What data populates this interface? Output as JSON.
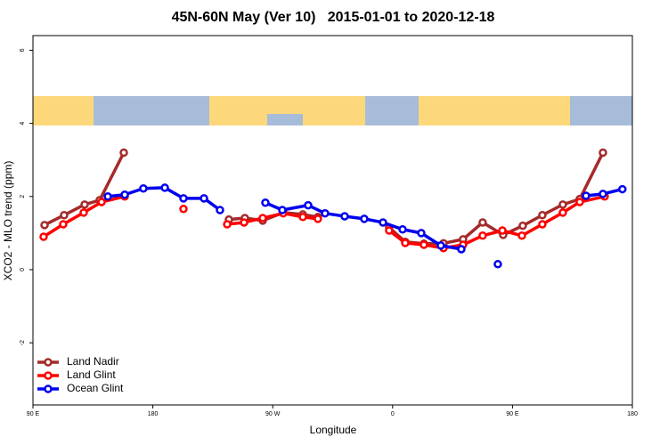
{
  "chart_data": {
    "type": "line",
    "title": "45N-60N May (Ver 10)   2015-01-01 to 2020-12-18",
    "xlabel": "Longitude",
    "ylabel": "XCO2 - MLO trend (ppm)",
    "xlim": [
      90,
      540
    ],
    "xticks": [
      {
        "value": 90,
        "label": "90 E"
      },
      180,
      {
        "value": 270,
        "label": "90 W"
      },
      {
        "value": 360,
        "label": "0"
      },
      {
        "value": 450,
        "label": "90 E"
      },
      {
        "value": 540,
        "label": "180"
      }
    ],
    "ylim": [
      -3.7,
      6.4
    ],
    "yticks": [
      -2,
      0,
      2,
      4,
      6
    ],
    "legend": "lower left",
    "series": [
      {
        "name": "Land Nadir",
        "color": "#a52a2a",
        "x": [
          98.7,
          113.4,
          128.8,
          140.1,
          158.2,
          null,
          237.1,
          249.1,
          262.5,
          277.9,
          292.6,
          303.9,
          null,
          357.4,
          369.5,
          383.5,
          398.2,
          412.9,
          427.6,
          443,
          457.7,
          472.4,
          487.8,
          500.5,
          517.9
        ],
        "values": [
          1.22,
          1.49,
          1.78,
          1.9,
          3.2,
          null,
          1.37,
          1.41,
          1.34,
          1.56,
          1.51,
          1.44,
          null,
          1.15,
          0.76,
          0.71,
          0.72,
          0.83,
          1.29,
          0.95,
          1.2,
          1.49,
          1.78,
          1.93,
          3.2
        ]
      },
      {
        "name": "Land Glint",
        "color": "#ff0000",
        "x": [
          98,
          112.7,
          128.1,
          141.5,
          158.9,
          null,
          203,
          null,
          235.8,
          248.5,
          262.5,
          277.9,
          292.6,
          303.9,
          null,
          357.4,
          369.5,
          383.5,
          398.2,
          412.9,
          427.6,
          442.4,
          457.1,
          472.4,
          487.8,
          500.5,
          519.2
        ],
        "values": [
          0.9,
          1.24,
          1.56,
          1.85,
          2.0,
          null,
          1.66,
          null,
          1.24,
          1.29,
          1.41,
          1.54,
          1.44,
          1.39,
          null,
          1.07,
          0.73,
          0.68,
          0.59,
          0.68,
          0.93,
          1.07,
          0.93,
          1.24,
          1.56,
          1.85,
          2.0
        ]
      },
      {
        "name": "Ocean Glint",
        "color": "#0000ee",
        "x": [
          146.2,
          158.9,
          172.9,
          189,
          203,
          218.4,
          230.4,
          null,
          264.5,
          277.2,
          296.6,
          309.3,
          324,
          338.7,
          352.8,
          367.5,
          381.5,
          396.2,
          411.6,
          null,
          439,
          null,
          505.2,
          517.9,
          532.5
        ],
        "values": [
          2.0,
          2.05,
          2.22,
          2.24,
          1.95,
          1.95,
          1.63,
          null,
          1.83,
          1.63,
          1.76,
          1.54,
          1.46,
          1.39,
          1.29,
          1.1,
          1.0,
          0.66,
          0.56,
          null,
          0.15,
          null,
          2.02,
          2.07,
          2.2
        ]
      }
    ]
  }
}
